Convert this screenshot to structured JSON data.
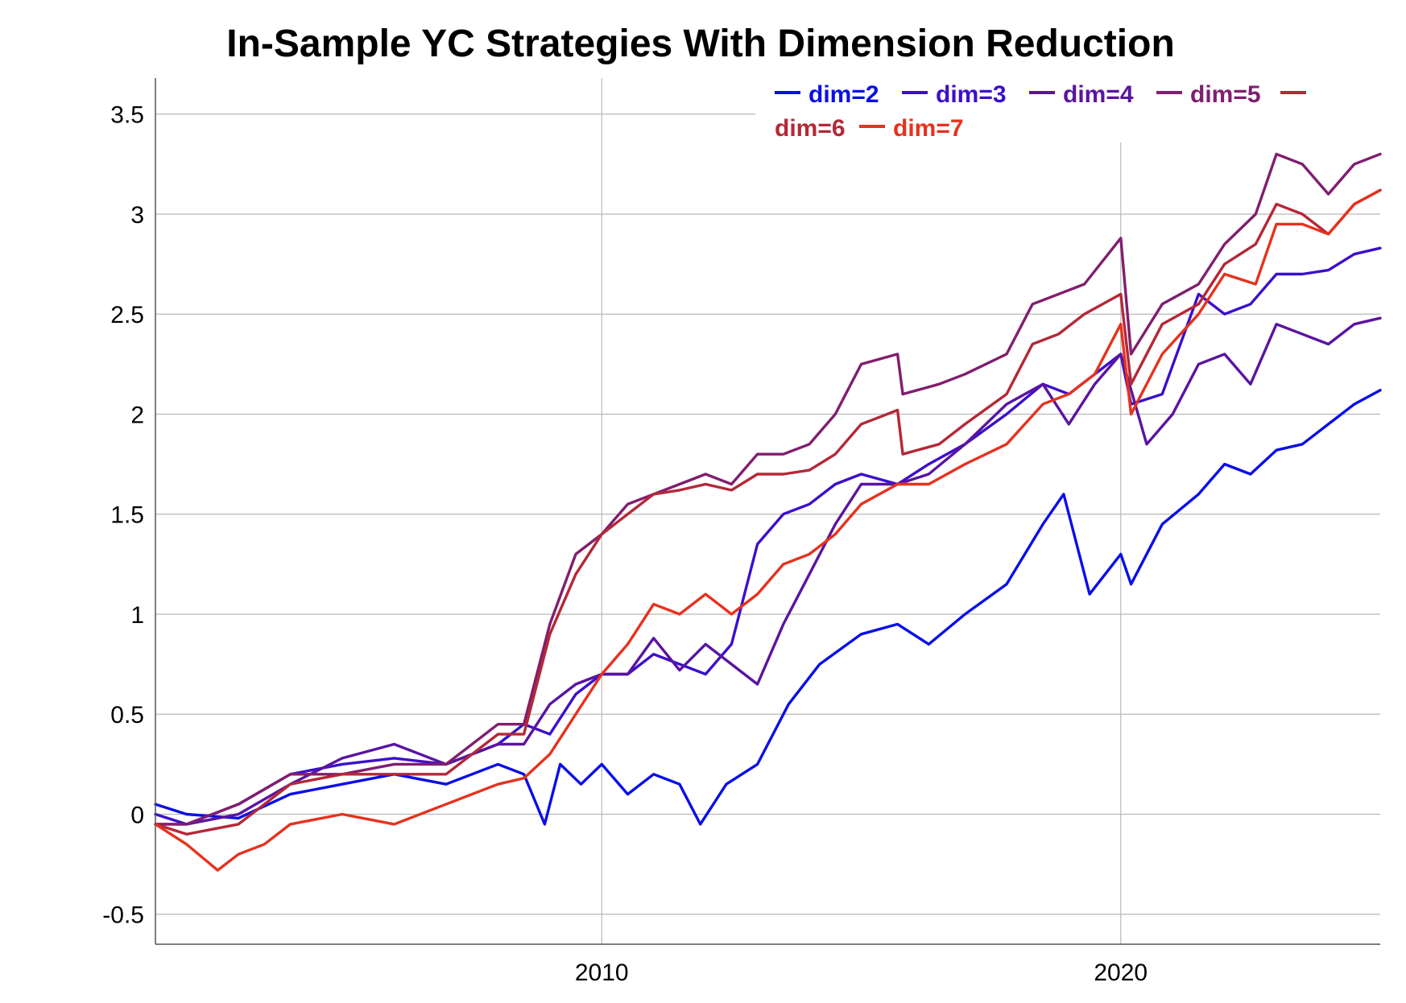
{
  "chart_data": {
    "type": "line",
    "title": "In-Sample YC Strategies With Dimension Reduction",
    "xlabel": "",
    "ylabel": "",
    "xlim": [
      2001.4,
      2025.0
    ],
    "ylim": [
      -0.65,
      3.68
    ],
    "x_ticks": [
      2010,
      2020
    ],
    "x_tick_labels": [
      "2010",
      "2020"
    ],
    "y_ticks": [
      -0.5,
      0,
      0.5,
      1,
      1.5,
      2,
      2.5,
      3,
      3.5
    ],
    "y_tick_labels": [
      "-0.5",
      "0",
      "0.5",
      "1",
      "1.5",
      "2",
      "2.5",
      "3",
      "3.5"
    ],
    "grid": true,
    "legend_position": "top-right",
    "series": [
      {
        "name": "dim=2",
        "color": "#0a0fe6",
        "x": [
          2001.4,
          2002.0,
          2003.0,
          2004.0,
          2005.0,
          2006.0,
          2007.0,
          2008.0,
          2008.5,
          2008.9,
          2009.2,
          2009.6,
          2010.0,
          2010.5,
          2011.0,
          2011.5,
          2011.9,
          2012.4,
          2013.0,
          2013.6,
          2014.2,
          2015.0,
          2015.7,
          2016.3,
          2017.0,
          2017.8,
          2018.5,
          2018.9,
          2019.4,
          2020.0,
          2020.2,
          2020.8,
          2021.5,
          2022.0,
          2022.5,
          2023.0,
          2023.5,
          2024.0,
          2024.5,
          2025.0
        ],
        "y": [
          0.05,
          0.0,
          -0.02,
          0.1,
          0.15,
          0.2,
          0.15,
          0.25,
          0.2,
          -0.05,
          0.25,
          0.15,
          0.25,
          0.1,
          0.2,
          0.15,
          -0.05,
          0.15,
          0.25,
          0.55,
          0.75,
          0.9,
          0.95,
          0.85,
          1.0,
          1.15,
          1.45,
          1.6,
          1.1,
          1.3,
          1.15,
          1.45,
          1.6,
          1.75,
          1.7,
          1.82,
          1.85,
          1.95,
          2.05,
          2.12
        ]
      },
      {
        "name": "dim=3",
        "color": "#3c0fcc",
        "x": [
          2001.4,
          2002.0,
          2003.0,
          2004.0,
          2005.0,
          2006.0,
          2007.0,
          2008.0,
          2008.5,
          2009.0,
          2009.5,
          2010.0,
          2010.5,
          2011.0,
          2011.5,
          2012.0,
          2012.5,
          2013.0,
          2013.5,
          2014.0,
          2014.5,
          2015.0,
          2015.7,
          2016.3,
          2017.0,
          2017.8,
          2018.5,
          2019.0,
          2019.5,
          2020.0,
          2020.2,
          2020.8,
          2021.5,
          2022.0,
          2022.5,
          2023.0,
          2023.5,
          2024.0,
          2024.5,
          2025.0
        ],
        "y": [
          0.0,
          -0.05,
          0.05,
          0.2,
          0.25,
          0.28,
          0.25,
          0.35,
          0.45,
          0.4,
          0.6,
          0.7,
          0.7,
          0.8,
          0.75,
          0.7,
          0.85,
          1.35,
          1.5,
          1.55,
          1.65,
          1.7,
          1.65,
          1.75,
          1.85,
          2.0,
          2.15,
          2.1,
          2.2,
          2.3,
          2.05,
          2.1,
          2.6,
          2.5,
          2.55,
          2.7,
          2.7,
          2.72,
          2.8,
          2.83
        ]
      },
      {
        "name": "dim=4",
        "color": "#5a14a0",
        "x": [
          2001.4,
          2002.0,
          2003.0,
          2004.0,
          2005.0,
          2006.0,
          2006.5,
          2007.0,
          2008.0,
          2008.5,
          2009.0,
          2009.5,
          2010.0,
          2010.5,
          2011.0,
          2011.5,
          2012.0,
          2012.5,
          2013.0,
          2013.5,
          2014.0,
          2014.5,
          2015.0,
          2015.7,
          2016.3,
          2017.0,
          2017.8,
          2018.5,
          2019.0,
          2019.5,
          2020.0,
          2020.5,
          2021.0,
          2021.5,
          2022.0,
          2022.5,
          2023.0,
          2023.5,
          2024.0,
          2024.5,
          2025.0
        ],
        "y": [
          -0.05,
          -0.05,
          0.0,
          0.15,
          0.28,
          0.35,
          0.3,
          0.25,
          0.35,
          0.35,
          0.55,
          0.65,
          0.7,
          0.7,
          0.88,
          0.72,
          0.85,
          0.75,
          0.65,
          0.95,
          1.2,
          1.45,
          1.65,
          1.65,
          1.7,
          1.85,
          2.05,
          2.15,
          1.95,
          2.15,
          2.3,
          1.85,
          2.0,
          2.25,
          2.3,
          2.15,
          2.45,
          2.4,
          2.35,
          2.45,
          2.48
        ]
      },
      {
        "name": "dim=5",
        "color": "#801e6e",
        "x": [
          2001.4,
          2002.0,
          2003.0,
          2004.0,
          2005.0,
          2006.0,
          2007.0,
          2008.0,
          2008.5,
          2009.0,
          2009.5,
          2010.0,
          2010.5,
          2011.0,
          2011.5,
          2012.0,
          2012.5,
          2013.0,
          2013.5,
          2014.0,
          2014.5,
          2015.0,
          2015.7,
          2015.8,
          2016.5,
          2017.0,
          2017.8,
          2018.3,
          2018.8,
          2019.3,
          2020.0,
          2020.2,
          2020.8,
          2021.5,
          2022.0,
          2022.6,
          2023.0,
          2023.5,
          2024.0,
          2024.5,
          2025.0
        ],
        "y": [
          -0.05,
          -0.05,
          0.05,
          0.2,
          0.2,
          0.25,
          0.25,
          0.45,
          0.45,
          0.95,
          1.3,
          1.4,
          1.55,
          1.6,
          1.65,
          1.7,
          1.65,
          1.8,
          1.8,
          1.85,
          2.0,
          2.25,
          2.3,
          2.1,
          2.15,
          2.2,
          2.3,
          2.55,
          2.6,
          2.65,
          2.88,
          2.3,
          2.55,
          2.65,
          2.85,
          3.0,
          3.3,
          3.25,
          3.1,
          3.25,
          3.3
        ]
      },
      {
        "name": "dim=6",
        "color": "#b42837",
        "x": [
          2001.4,
          2002.0,
          2003.0,
          2004.0,
          2005.0,
          2006.0,
          2007.0,
          2008.0,
          2008.5,
          2009.0,
          2009.5,
          2010.0,
          2010.5,
          2011.0,
          2011.5,
          2012.0,
          2012.5,
          2013.0,
          2013.5,
          2014.0,
          2014.5,
          2015.0,
          2015.7,
          2015.8,
          2016.5,
          2017.0,
          2017.8,
          2018.3,
          2018.8,
          2019.3,
          2020.0,
          2020.2,
          2020.8,
          2021.5,
          2022.0,
          2022.6,
          2023.0,
          2023.5,
          2024.0,
          2024.5,
          2025.0
        ],
        "y": [
          -0.05,
          -0.1,
          -0.05,
          0.15,
          0.2,
          0.2,
          0.2,
          0.4,
          0.4,
          0.9,
          1.2,
          1.4,
          1.5,
          1.6,
          1.62,
          1.65,
          1.62,
          1.7,
          1.7,
          1.72,
          1.8,
          1.95,
          2.02,
          1.8,
          1.85,
          1.95,
          2.1,
          2.35,
          2.4,
          2.5,
          2.6,
          2.15,
          2.45,
          2.55,
          2.75,
          2.85,
          3.05,
          3.0,
          2.9,
          3.05,
          3.12
        ]
      },
      {
        "name": "dim=7",
        "color": "#e6321e",
        "x": [
          2001.4,
          2002.0,
          2002.6,
          2003.0,
          2003.5,
          2004.0,
          2005.0,
          2006.0,
          2007.0,
          2008.0,
          2008.5,
          2009.0,
          2009.5,
          2010.0,
          2010.5,
          2011.0,
          2011.5,
          2012.0,
          2012.5,
          2013.0,
          2013.5,
          2014.0,
          2014.5,
          2015.0,
          2015.7,
          2016.3,
          2017.0,
          2017.8,
          2018.5,
          2019.0,
          2019.5,
          2020.0,
          2020.2,
          2020.8,
          2021.5,
          2022.0,
          2022.6,
          2023.0,
          2023.5,
          2024.0,
          2024.5,
          2025.0
        ],
        "y": [
          -0.05,
          -0.15,
          -0.28,
          -0.2,
          -0.15,
          -0.05,
          0.0,
          -0.05,
          0.05,
          0.15,
          0.18,
          0.3,
          0.5,
          0.7,
          0.85,
          1.05,
          1.0,
          1.1,
          1.0,
          1.1,
          1.25,
          1.3,
          1.4,
          1.55,
          1.65,
          1.65,
          1.75,
          1.85,
          2.05,
          2.1,
          2.2,
          2.45,
          2.0,
          2.3,
          2.5,
          2.7,
          2.65,
          2.95,
          2.95,
          2.9,
          3.05,
          3.12
        ]
      }
    ]
  }
}
